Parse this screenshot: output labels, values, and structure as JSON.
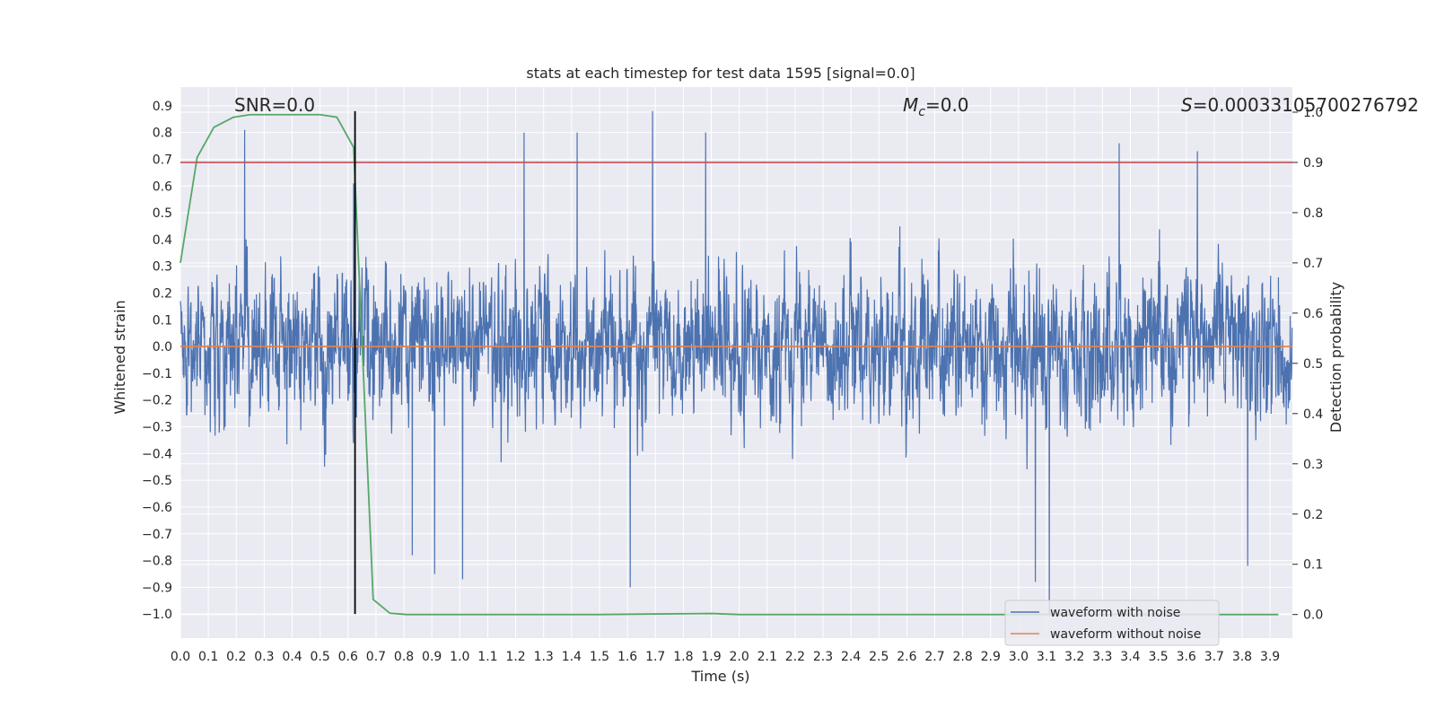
{
  "chart_data": {
    "type": "line",
    "title": "stats at each timestep for test data 1595 [signal=0.0]",
    "xlabel": "Time (s)",
    "ylabel": "Whitened strain",
    "y2label": "Detection probability",
    "xlim": [
      0.0,
      3.98
    ],
    "ylim": [
      -1.09,
      0.97
    ],
    "y2lim": [
      -0.047,
      1.05
    ],
    "x_ticks": [
      "0.0",
      "0.1",
      "0.2",
      "0.3",
      "0.4",
      "0.5",
      "0.6",
      "0.7",
      "0.8",
      "0.9",
      "1.0",
      "1.1",
      "1.2",
      "1.3",
      "1.4",
      "1.5",
      "1.6",
      "1.7",
      "1.8",
      "1.9",
      "2.0",
      "2.1",
      "2.2",
      "2.3",
      "2.4",
      "2.5",
      "2.6",
      "2.7",
      "2.8",
      "2.9",
      "3.0",
      "3.1",
      "3.2",
      "3.3",
      "3.4",
      "3.5",
      "3.6",
      "3.7",
      "3.8",
      "3.9"
    ],
    "y_ticks": [
      "0.9",
      "0.8",
      "0.7",
      "0.6",
      "0.5",
      "0.4",
      "0.3",
      "0.2",
      "0.1",
      "0.0",
      "−0.1",
      "−0.2",
      "−0.3",
      "−0.4",
      "−0.5",
      "−0.6",
      "−0.7",
      "−0.8",
      "−0.9",
      "−1.0"
    ],
    "y2_ticks": [
      "1.0",
      "0.9",
      "0.8",
      "0.7",
      "0.6",
      "0.5",
      "0.4",
      "0.3",
      "0.2",
      "0.1",
      "0.0"
    ],
    "grid": true,
    "legend_placement": "lower-right",
    "annotations": {
      "snr": "SNR=0.0",
      "mc_symbol": "M",
      "mc_subscript": "c",
      "mc_value": "=0.0",
      "s_symbol": "S",
      "s_value": "=0.00033105700276792"
    },
    "series": [
      {
        "name": "waveform with noise",
        "color": "#4c72b0",
        "description_note_free": true,
        "sample_rate_hz": 1000,
        "x_range": [
          0.0,
          3.98
        ],
        "peaks": [
          {
            "x": 0.23,
            "y": 0.81
          },
          {
            "x": 0.62,
            "y": 0.61
          },
          {
            "x": 1.23,
            "y": 0.8
          },
          {
            "x": 1.42,
            "y": 0.8
          },
          {
            "x": 1.69,
            "y": 0.88
          },
          {
            "x": 1.88,
            "y": 0.8
          },
          {
            "x": 3.36,
            "y": 0.76
          },
          {
            "x": 3.64,
            "y": 0.73
          },
          {
            "x": 0.83,
            "y": -0.78
          },
          {
            "x": 0.91,
            "y": -0.85
          },
          {
            "x": 1.01,
            "y": -0.87
          },
          {
            "x": 1.61,
            "y": -0.9
          },
          {
            "x": 3.06,
            "y": -0.88
          },
          {
            "x": 3.11,
            "y": -1.0
          },
          {
            "x": 3.82,
            "y": -0.82
          }
        ]
      },
      {
        "name": "waveform without noise",
        "color": "#dd8452",
        "x": [
          0.0,
          3.98
        ],
        "values": [
          0.0,
          0.0
        ]
      },
      {
        "name": "",
        "color": "#55a868",
        "axis": "y2",
        "x": [
          0.0,
          0.06,
          0.12,
          0.19,
          0.25,
          0.31,
          0.37,
          0.44,
          0.5,
          0.56,
          0.62,
          0.69,
          0.75,
          0.81,
          1.0,
          1.5,
          1.9,
          2.0,
          2.5,
          3.0,
          3.5,
          3.93
        ],
        "values": [
          0.7,
          0.91,
          0.97,
          0.99,
          0.995,
          0.995,
          0.995,
          0.995,
          0.995,
          0.99,
          0.93,
          0.03,
          0.0025,
          0.0,
          0.0,
          0.0,
          0.002,
          0.0,
          0.0,
          0.0,
          0.0,
          0.0
        ]
      }
    ],
    "threshold_line": {
      "axis": "y2",
      "value": 0.9,
      "color": "#c44e52"
    },
    "marker_line": {
      "x": 0.625,
      "y_range": [
        -1.0,
        0.88
      ],
      "color": "#000000"
    }
  }
}
